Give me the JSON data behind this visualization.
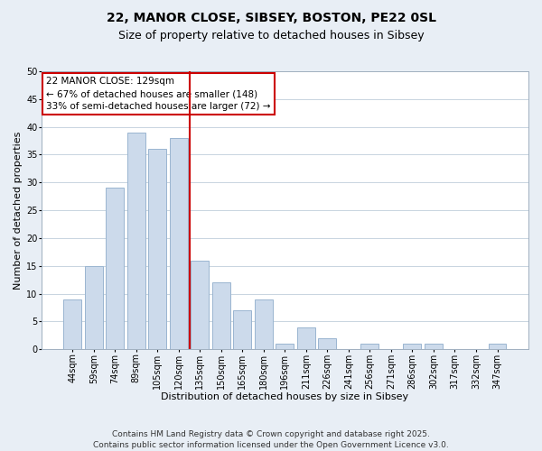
{
  "title": "22, MANOR CLOSE, SIBSEY, BOSTON, PE22 0SL",
  "subtitle": "Size of property relative to detached houses in Sibsey",
  "bar_labels": [
    "44sqm",
    "59sqm",
    "74sqm",
    "89sqm",
    "105sqm",
    "120sqm",
    "135sqm",
    "150sqm",
    "165sqm",
    "180sqm",
    "196sqm",
    "211sqm",
    "226sqm",
    "241sqm",
    "256sqm",
    "271sqm",
    "286sqm",
    "302sqm",
    "317sqm",
    "332sqm",
    "347sqm"
  ],
  "bar_values": [
    9,
    15,
    29,
    39,
    36,
    38,
    16,
    12,
    7,
    9,
    1,
    4,
    2,
    0,
    1,
    0,
    1,
    1,
    0,
    0,
    1
  ],
  "bar_color": "#ccdaeb",
  "bar_edgecolor": "#9ab5d0",
  "ylim": [
    0,
    50
  ],
  "yticks": [
    0,
    5,
    10,
    15,
    20,
    25,
    30,
    35,
    40,
    45,
    50
  ],
  "ylabel": "Number of detached properties",
  "xlabel": "Distribution of detached houses by size in Sibsey",
  "vline_x": 5.5,
  "vline_color": "#cc0000",
  "annotation_title": "22 MANOR CLOSE: 129sqm",
  "annotation_line1": "← 67% of detached houses are smaller (148)",
  "annotation_line2": "33% of semi-detached houses are larger (72) →",
  "annotation_box_color": "#ffffff",
  "annotation_box_edgecolor": "#cc0000",
  "footer1": "Contains HM Land Registry data © Crown copyright and database right 2025.",
  "footer2": "Contains public sector information licensed under the Open Government Licence v3.0.",
  "bg_color": "#e8eef5",
  "plot_bg_color": "#ffffff",
  "grid_color": "#c8d4e0",
  "title_fontsize": 10,
  "subtitle_fontsize": 9,
  "axis_label_fontsize": 8,
  "tick_label_fontsize": 7,
  "annotation_fontsize": 7.5,
  "footer_fontsize": 6.5
}
